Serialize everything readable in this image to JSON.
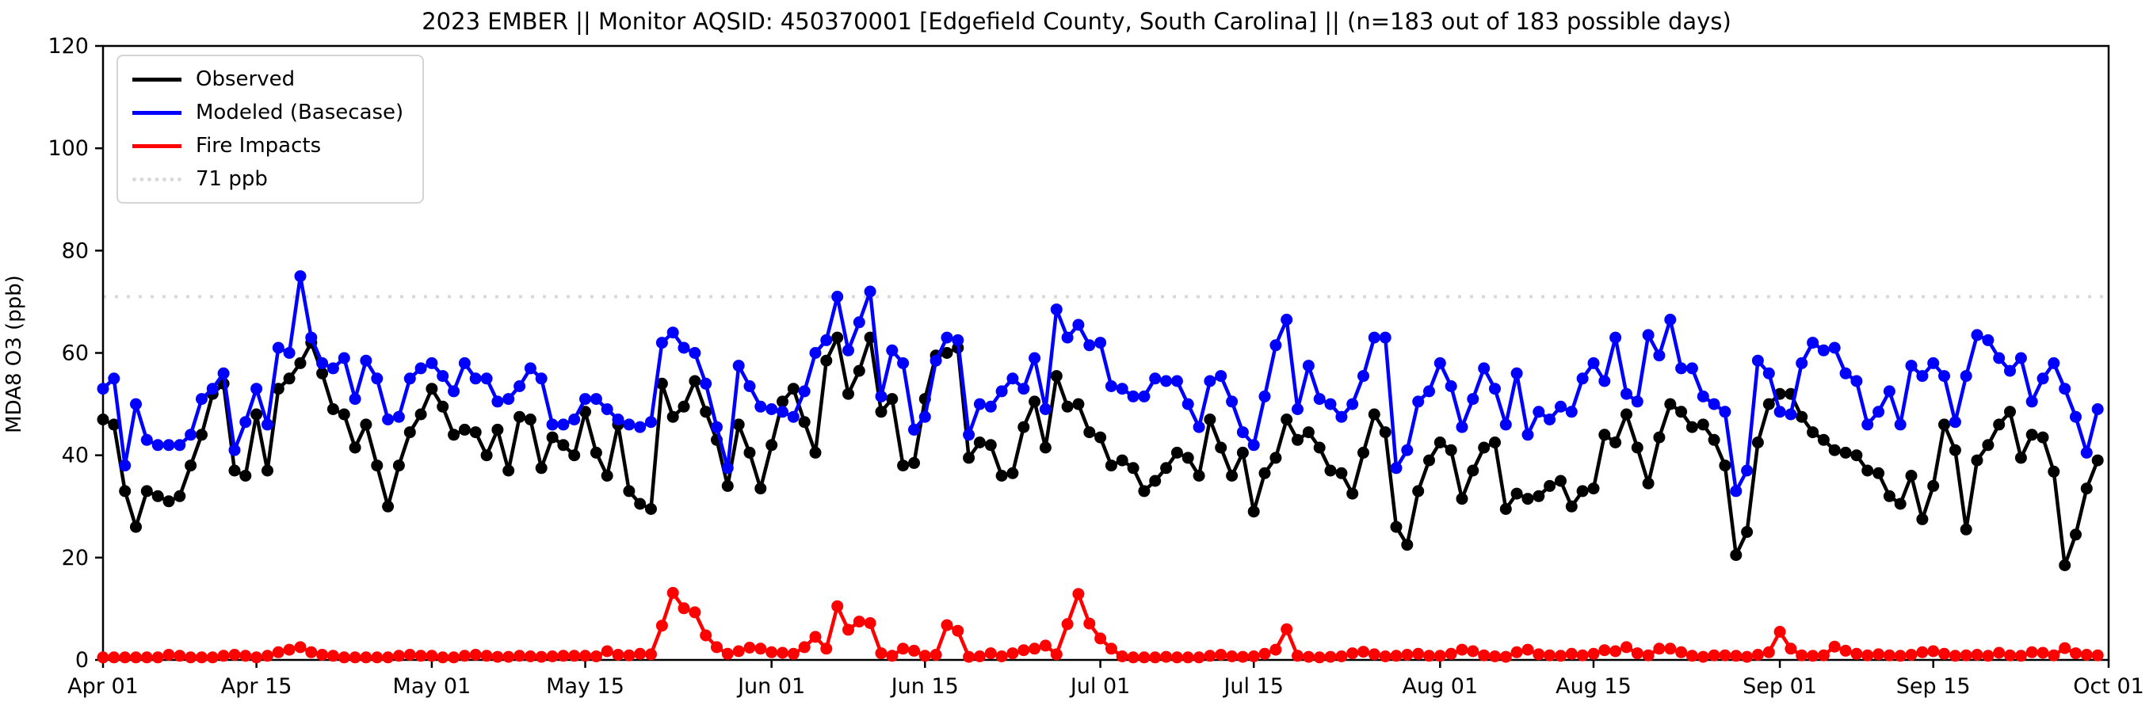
{
  "title": "2023 EMBER || Monitor AQSID: 450370001 [Edgefield County, South Carolina] || (n=183 out of 183 possible days)",
  "y_axis": {
    "label": "MDA8 O3 (ppb)",
    "ticks": [
      0,
      20,
      40,
      60,
      80,
      100,
      120
    ],
    "range": [
      0,
      120
    ]
  },
  "x_axis": {
    "tick_labels": [
      "Apr 01",
      "Apr 15",
      "May 01",
      "May 15",
      "Jun 01",
      "Jun 15",
      "Jul 01",
      "Jul 15",
      "Aug 01",
      "Aug 15",
      "Sep 01",
      "Sep 15",
      "Oct 01"
    ],
    "tick_days": [
      0,
      14,
      30,
      44,
      61,
      75,
      91,
      105,
      122,
      136,
      153,
      167,
      183
    ],
    "total_days": 183
  },
  "legend": {
    "items": [
      {
        "label": "Observed",
        "color": "#000000",
        "style": "solid"
      },
      {
        "label": "Modeled (Basecase)",
        "color": "#0000ff",
        "style": "solid"
      },
      {
        "label": "Fire Impacts",
        "color": "#ff0000",
        "style": "solid"
      },
      {
        "label": "71 ppb",
        "color": "#d9d9d9",
        "style": "dotted"
      }
    ]
  },
  "reference_line": {
    "label": "71 ppb",
    "value": 71,
    "color": "#d9d9d9"
  },
  "chart_data": {
    "type": "line",
    "n_days": 183,
    "date_start": "Apr 01",
    "date_end": "Sep 30",
    "ylim": [
      0,
      120
    ],
    "grid": false,
    "legend_position": "upper-left",
    "series": [
      {
        "name": "Observed",
        "color": "#000000",
        "values": [
          47,
          46,
          33,
          26,
          33,
          32,
          31,
          32,
          38,
          44,
          52,
          54,
          37,
          36,
          48,
          37,
          53,
          55,
          58,
          62,
          56,
          49,
          48,
          41.5,
          46,
          38,
          30,
          38,
          44.5,
          48,
          53,
          49.5,
          44,
          45,
          44.5,
          40,
          45,
          37,
          47.5,
          47,
          37.5,
          43.5,
          42,
          40,
          48.5,
          40.5,
          36,
          46,
          33,
          30.5,
          29.5,
          54,
          47.5,
          49.5,
          54.5,
          48.5,
          43,
          34,
          46,
          40.5,
          33.5,
          42,
          50.5,
          53,
          46.5,
          40.5,
          58.5,
          63,
          52,
          56.5,
          63,
          48.5,
          51,
          38,
          38.5,
          51,
          59.5,
          60,
          61,
          39.5,
          42.5,
          42,
          36,
          36.5,
          45.5,
          50.5,
          41.5,
          55.5,
          49.5,
          50,
          44.5,
          43.5,
          38,
          39,
          37.5,
          33,
          35,
          37.5,
          40.5,
          39.5,
          36,
          47,
          41.5,
          36,
          40.5,
          29,
          36.5,
          39.5,
          47,
          43,
          44.5,
          41.5,
          37,
          36.5,
          32.5,
          40.5,
          48,
          44.5,
          26,
          22.5,
          33,
          39,
          42.5,
          41,
          31.5,
          37,
          41.5,
          42.5,
          29.5,
          32.5,
          31.5,
          32,
          34,
          35,
          30,
          33,
          33.5,
          44,
          42.5,
          48,
          41.5,
          34.5,
          43.5,
          50,
          48.5,
          45.5,
          46,
          43,
          38,
          20.5,
          25,
          42.5,
          50,
          52,
          52,
          47.5,
          44.5,
          43,
          41,
          40.5,
          40,
          37,
          36.5,
          32,
          30.5,
          36,
          27.5,
          34,
          46,
          41,
          25.5,
          39,
          42,
          46,
          48.5,
          39.5,
          44,
          43.5,
          36.8,
          18.5,
          24.5,
          33.5,
          39
        ]
      },
      {
        "name": "Modeled (Basecase)",
        "color": "#0000ff",
        "values": [
          53,
          55,
          38,
          50,
          43,
          42,
          42,
          42,
          44,
          51,
          53,
          56,
          41,
          46.5,
          53,
          46,
          61,
          60,
          75,
          63,
          58,
          57,
          59,
          51,
          58.5,
          55,
          47,
          47.5,
          55,
          57,
          58,
          55.5,
          52.5,
          58,
          55,
          55,
          50.5,
          51,
          53.5,
          57,
          55,
          46,
          46,
          47,
          51,
          51,
          49,
          47,
          46,
          45.5,
          46.5,
          62,
          64,
          61,
          60,
          54,
          45.5,
          37.5,
          57.5,
          53.5,
          49.5,
          49,
          48.5,
          47.5,
          52.5,
          60,
          62.5,
          71,
          60.5,
          66,
          72,
          51.5,
          60.5,
          58,
          45,
          47.5,
          58.5,
          63,
          62.5,
          44,
          50,
          49.5,
          52.5,
          55,
          53,
          59,
          49,
          68.5,
          63,
          65.5,
          61.5,
          62,
          53.5,
          53,
          51.5,
          51.5,
          55,
          54.5,
          54.5,
          50,
          45.5,
          54.5,
          55.5,
          50.5,
          44.5,
          42,
          51.5,
          61.5,
          66.5,
          49,
          57.5,
          51,
          50,
          47.5,
          50,
          55.5,
          63,
          63,
          37.5,
          41,
          50.5,
          52.5,
          58,
          53.5,
          45.5,
          51,
          57,
          53,
          46,
          56,
          44,
          48.5,
          47,
          49.5,
          48.5,
          55,
          58,
          54.5,
          63,
          52,
          50.5,
          63.5,
          59.5,
          66.5,
          57,
          57,
          51.5,
          50,
          48.5,
          33,
          37,
          58.5,
          56,
          48.5,
          48,
          58,
          62,
          60.5,
          61,
          56,
          54.5,
          46,
          48.5,
          52.5,
          46,
          57.5,
          55.5,
          58,
          55.5,
          46.5,
          55.5,
          63.5,
          62.5,
          59,
          56.5,
          59,
          50.5,
          55,
          58,
          53,
          47.5,
          40.5,
          49
        ]
      },
      {
        "name": "Fire Impacts",
        "color": "#ff0000",
        "values": [
          0.5,
          0.5,
          0.5,
          0.5,
          0.5,
          0.5,
          1,
          0.8,
          0.5,
          0.5,
          0.5,
          0.8,
          1,
          0.8,
          0.5,
          0.8,
          1.5,
          2,
          2.5,
          1.5,
          1,
          0.8,
          0.5,
          0.5,
          0.5,
          0.5,
          0.5,
          0.8,
          1,
          0.8,
          0.8,
          0.5,
          0.5,
          0.8,
          1,
          0.8,
          0.6,
          0.6,
          0.8,
          0.7,
          0.6,
          0.7,
          0.8,
          0.8,
          0.8,
          0.7,
          1.7,
          1,
          0.9,
          1.2,
          1.1,
          6.7,
          13.1,
          10.1,
          9.3,
          4.8,
          2.5,
          1.2,
          1.7,
          2.4,
          2.2,
          1.5,
          1.4,
          1.2,
          2.5,
          4.5,
          2.2,
          10.5,
          5.9,
          7.5,
          7.2,
          1.3,
          0.8,
          2.2,
          1.8,
          0.8,
          1,
          6.8,
          5.7,
          0.6,
          0.7,
          1.3,
          0.7,
          1.3,
          1.9,
          2.2,
          2.8,
          1.1,
          7,
          12.9,
          7.1,
          4.2,
          2.2,
          0.7,
          0.5,
          0.5,
          0.5,
          0.6,
          0.5,
          0.5,
          0.5,
          0.8,
          1,
          0.7,
          0.6,
          0.7,
          1.2,
          2,
          6,
          0.8,
          0.6,
          0.5,
          0.6,
          0.7,
          1.3,
          1.6,
          1.1,
          0.7,
          0.8,
          1,
          1.2,
          0.8,
          0.8,
          1.2,
          2,
          1.7,
          0.9,
          0.7,
          0.6,
          1.5,
          2,
          1.1,
          0.9,
          0.8,
          1.2,
          0.9,
          1.2,
          1.9,
          1.7,
          2.5,
          1.3,
          0.9,
          2.2,
          2.2,
          1.5,
          0.8,
          0.6,
          0.9,
          0.9,
          0.8,
          0.6,
          1,
          1.5,
          5.5,
          2.2,
          0.9,
          0.8,
          0.9,
          2.6,
          1.8,
          1.2,
          0.9,
          1.1,
          0.9,
          0.8,
          1,
          1.5,
          1.7,
          1.2,
          0.8,
          0.9,
          1,
          0.8,
          1.4,
          0.9,
          0.8,
          1.5,
          1.4,
          0.9,
          2.3,
          1.3,
          1,
          0.9
        ]
      }
    ]
  }
}
